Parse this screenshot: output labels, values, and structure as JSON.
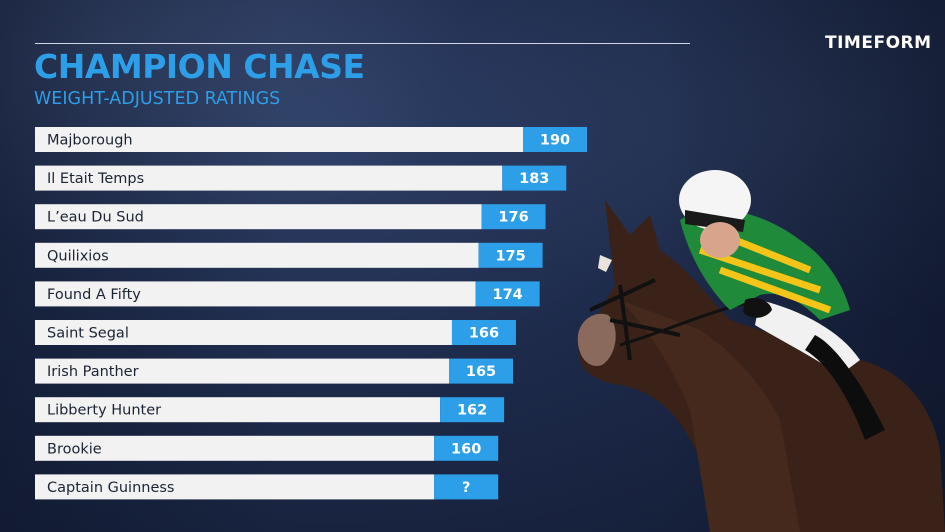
{
  "brand": {
    "logo_text": "TIMEFORM"
  },
  "header": {
    "title": "CHAMPION CHASE",
    "subtitle": "WEIGHT-ADJUSTED RATINGS"
  },
  "colors": {
    "accent": "#2d9ee8",
    "bar_fill": "#f2f2f2",
    "background": "#1d2a4a",
    "label_text": "#1c2435"
  },
  "chart_data": {
    "type": "bar",
    "orientation": "horizontal",
    "title": "CHAMPION CHASE",
    "subtitle": "WEIGHT-ADJUSTED RATINGS",
    "xlabel": "",
    "ylabel": "",
    "categories": [
      "Majborough",
      "Il Etait Temps",
      "L’eau Du Sud",
      "Quilixios",
      "Found A Fifty",
      "Saint Segal",
      "Irish Panther",
      "Libberty Hunter",
      "Brookie",
      "Captain Guinness"
    ],
    "values": [
      190,
      183,
      176,
      175,
      174,
      166,
      165,
      162,
      160,
      null
    ],
    "value_labels": [
      "190",
      "183",
      "176",
      "175",
      "174",
      "166",
      "165",
      "162",
      "160",
      "?"
    ],
    "xlim": [
      140,
      190
    ],
    "grid": false,
    "legend": "none"
  }
}
